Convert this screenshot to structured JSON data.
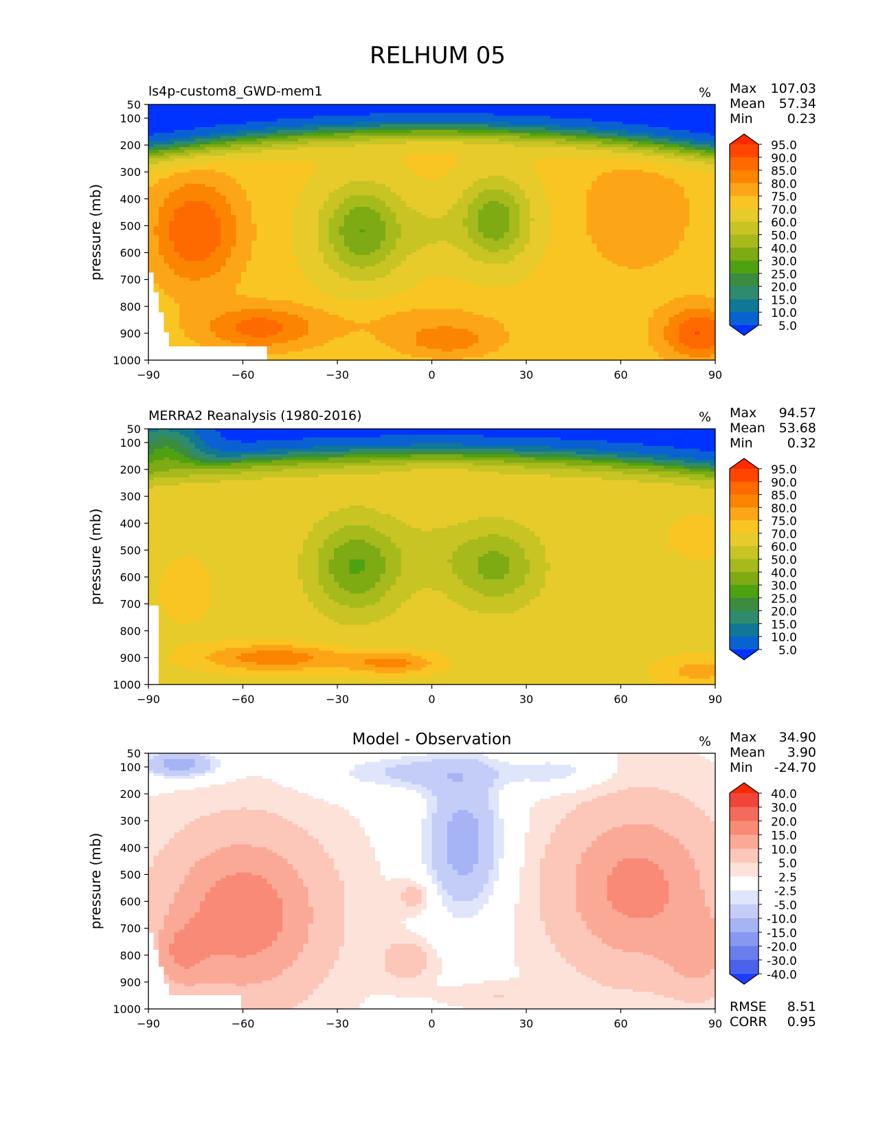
{
  "figure": {
    "title": "RELHUM 05",
    "units": "%",
    "stat_labels": {
      "max": "Max",
      "mean": "Mean",
      "min": "Min",
      "rmse": "RMSE",
      "corr": "CORR"
    }
  },
  "chart_data": [
    {
      "type": "heatmap",
      "title": "ls4p-custom8_GWD-mem1",
      "ylabel": "pressure (mb)",
      "xlim": [
        -90,
        90
      ],
      "ylim": [
        1000,
        50
      ],
      "y_scale": "pressure",
      "x_ticks": [
        "−90",
        "−60",
        "−30",
        "0",
        "30",
        "60",
        "90"
      ],
      "y_ticks": [
        "50",
        "100",
        "200",
        "300",
        "400",
        "500",
        "600",
        "700",
        "800",
        "900",
        "1000"
      ],
      "stats": {
        "max": "107.03",
        "mean": "57.34",
        "min": "0.23"
      },
      "colorbar": {
        "levels": [
          "95.0",
          "90.0",
          "85.0",
          "80.0",
          "75.0",
          "70.0",
          "60.0",
          "50.0",
          "40.0",
          "30.0",
          "25.0",
          "20.0",
          "15.0",
          "10.0",
          "5.0"
        ],
        "colors": [
          "#ff2a00",
          "#ff4500",
          "#ff6a00",
          "#fb8400",
          "#fca617",
          "#f9c522",
          "#e6cb2b",
          "#c7c424",
          "#a6ba1c",
          "#7eaa14",
          "#4ea212",
          "#3b8c3e",
          "#2f8b6d",
          "#107797",
          "#0a62d2",
          "#0033ff"
        ]
      }
    },
    {
      "type": "heatmap",
      "title": "MERRA2 Reanalysis (1980-2016)",
      "ylabel": "pressure (mb)",
      "xlim": [
        -90,
        90
      ],
      "ylim": [
        1000,
        50
      ],
      "y_scale": "pressure",
      "x_ticks": [
        "−90",
        "−60",
        "−30",
        "0",
        "30",
        "60",
        "90"
      ],
      "y_ticks": [
        "50",
        "100",
        "200",
        "300",
        "400",
        "500",
        "600",
        "700",
        "800",
        "900",
        "1000"
      ],
      "stats": {
        "max": "94.57",
        "mean": "53.68",
        "min": "0.32"
      },
      "colorbar": {
        "levels": [
          "95.0",
          "90.0",
          "85.0",
          "80.0",
          "75.0",
          "70.0",
          "60.0",
          "50.0",
          "40.0",
          "30.0",
          "25.0",
          "20.0",
          "15.0",
          "10.0",
          "5.0"
        ],
        "colors": [
          "#ff2a00",
          "#ff4500",
          "#ff6a00",
          "#fb8400",
          "#fca617",
          "#f9c522",
          "#e6cb2b",
          "#c7c424",
          "#a6ba1c",
          "#7eaa14",
          "#4ea212",
          "#3b8c3e",
          "#2f8b6d",
          "#107797",
          "#0a62d2",
          "#0033ff"
        ]
      }
    },
    {
      "type": "heatmap",
      "title": "Model - Observation",
      "ylabel": "pressure (mb)",
      "xlim": [
        -90,
        90
      ],
      "ylim": [
        1000,
        50
      ],
      "y_scale": "pressure",
      "x_ticks": [
        "−90",
        "−60",
        "−30",
        "0",
        "30",
        "60",
        "90"
      ],
      "y_ticks": [
        "50",
        "100",
        "200",
        "300",
        "400",
        "500",
        "600",
        "700",
        "800",
        "900",
        "1000"
      ],
      "stats": {
        "max": "34.90",
        "mean": "3.90",
        "min": "-24.70",
        "rmse": "8.51",
        "corr": "0.95"
      },
      "colorbar": {
        "levels": [
          "40.0",
          "30.0",
          "20.0",
          "15.0",
          "10.0",
          "5.0",
          "2.5",
          "-2.5",
          "-5.0",
          "-10.0",
          "-15.0",
          "-20.0",
          "-30.0",
          "-40.0"
        ],
        "colors": [
          "#ff2a00",
          "#f2453a",
          "#f46a5b",
          "#f98a78",
          "#fba997",
          "#fcc6b8",
          "#fde2da",
          "#ffffff",
          "#dfe5fb",
          "#c4cdf8",
          "#a6b3f5",
          "#8898f1",
          "#6a7ded",
          "#4c62ea",
          "#1f3dff"
        ]
      }
    }
  ]
}
